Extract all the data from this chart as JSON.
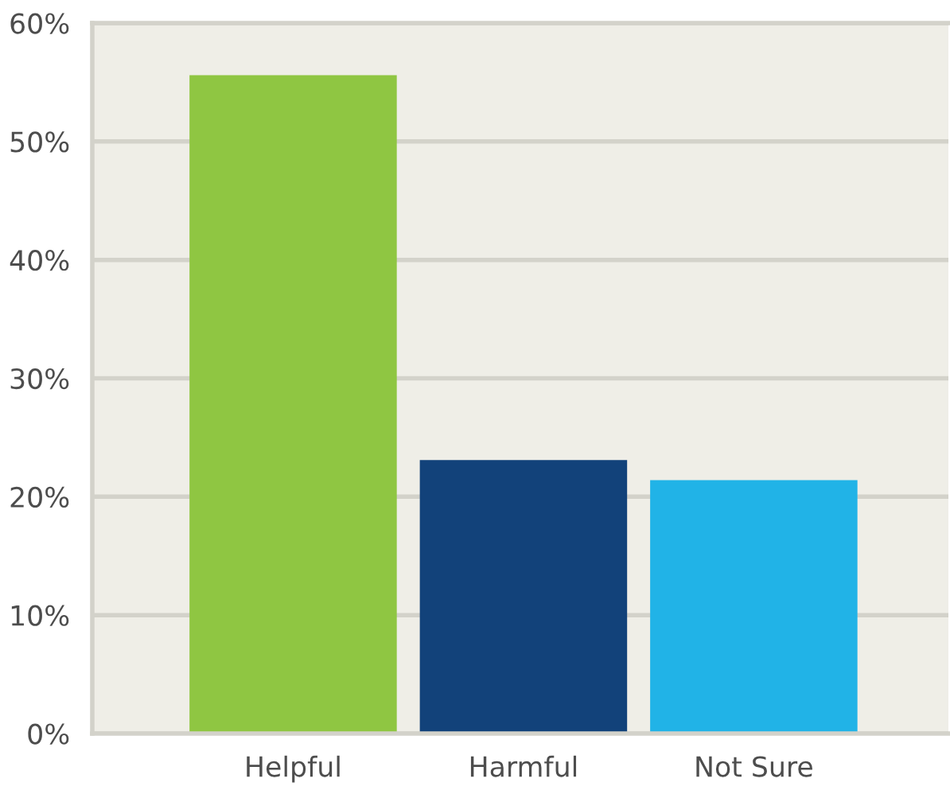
{
  "chart_data": {
    "type": "bar",
    "categories": [
      "Helpful",
      "Harmful",
      "Not Sure"
    ],
    "values": [
      55.6,
      23.1,
      21.4
    ],
    "colors": [
      "#8fc642",
      "#12427a",
      "#21b3e7"
    ],
    "ylim": [
      0,
      60
    ],
    "yticks": [
      {
        "value": 0,
        "label": "0%"
      },
      {
        "value": 10,
        "label": "10%"
      },
      {
        "value": 20,
        "label": "20%"
      },
      {
        "value": 30,
        "label": "30%"
      },
      {
        "value": 40,
        "label": "40%"
      },
      {
        "value": 50,
        "label": "50%"
      },
      {
        "value": 60,
        "label": "60%"
      }
    ],
    "grid": "y",
    "legend": false
  }
}
